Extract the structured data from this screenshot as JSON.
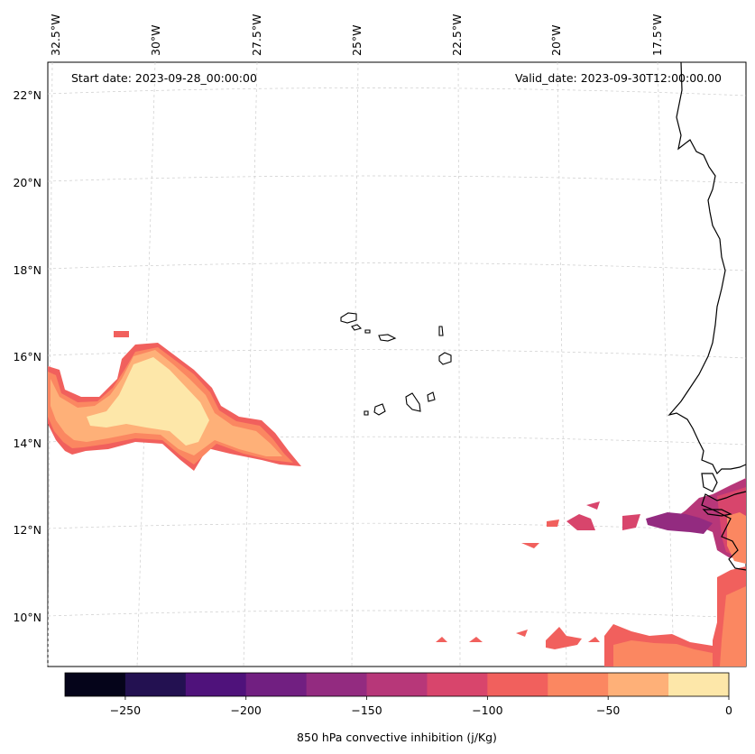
{
  "map": {
    "start_date": "Start date: 2023-09-28_00:00:00",
    "valid_date": "Valid_date: 2023-09-30T12:00:00.00",
    "lon_labels": [
      "32.5°W",
      "30°W",
      "27.5°W",
      "25°W",
      "22.5°W",
      "20°W",
      "17.5°W"
    ],
    "lat_labels": [
      "22°N",
      "20°N",
      "18°N",
      "16°N",
      "14°N",
      "12°N",
      "10°N"
    ]
  },
  "colorbar": {
    "title": "850 hPa convective inhibition (j/Kg)",
    "tick_labels": [
      "−250",
      "−200",
      "−150",
      "−100",
      "−50",
      "0"
    ],
    "colors": [
      "#05041a",
      "#231151",
      "#4f127b",
      "#711f81",
      "#932b80",
      "#b73779",
      "#d8456c",
      "#f1605d",
      "#fb8761",
      "#feb078",
      "#fde7a9"
    ]
  },
  "chart_data": {
    "type": "heatmap",
    "title": "",
    "variable": "850 hPa convective inhibition (j/Kg)",
    "colorbar_range": [
      -275,
      0
    ],
    "colorbar_levels": [
      -275,
      -250,
      -225,
      -200,
      -175,
      -150,
      -125,
      -100,
      -75,
      -50,
      -25,
      0
    ],
    "lon_range": [
      -33,
      -16
    ],
    "lat_range": [
      9,
      22.5
    ],
    "regions": [
      {
        "area": "west of 28°W, 13.5°N–16.5°N",
        "value_range": [
          -100,
          0
        ]
      },
      {
        "area": "West African coast 12°N–13°N",
        "value_range": [
          -175,
          -50
        ]
      },
      {
        "area": "south-east 9°N–10°N",
        "value_range": [
          -100,
          -50
        ]
      }
    ]
  }
}
